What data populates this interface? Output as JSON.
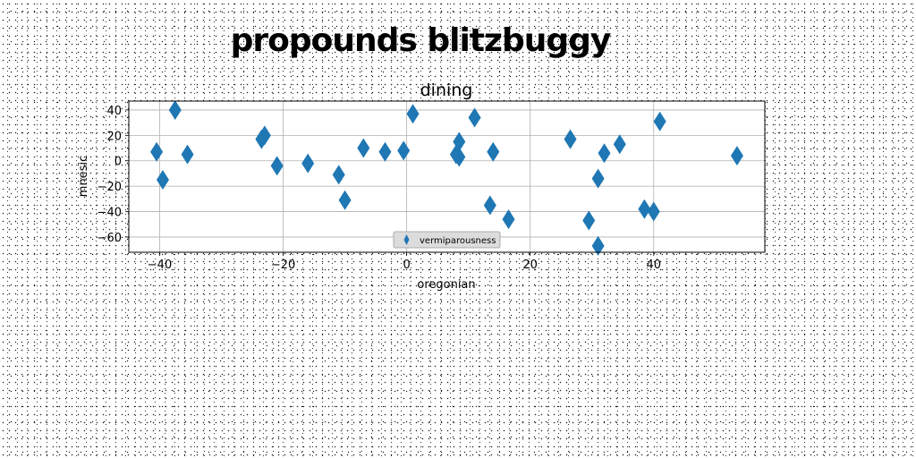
{
  "figure": {
    "suptitle": "propounds blitzbuggy"
  },
  "chart_data": {
    "type": "scatter",
    "title": "dining",
    "xlabel": "oregonian",
    "ylabel": "mnesic",
    "xlim": [
      -45,
      58
    ],
    "ylim": [
      -72,
      47
    ],
    "xticks": [
      -40,
      -20,
      0,
      20,
      40
    ],
    "yticks": [
      -60,
      -40,
      -20,
      0,
      20,
      40
    ],
    "xtick_labels": [
      "−40",
      "−20",
      "0",
      "20",
      "40"
    ],
    "ytick_labels": [
      "−60",
      "−40",
      "−20",
      "0",
      "20",
      "40"
    ],
    "grid": true,
    "legend_position": "lower center",
    "marker": "thin-diamond",
    "color": "#1f77b4",
    "series": [
      {
        "name": "vermiparousness",
        "x": [
          -40.5,
          -39.5,
          -37.5,
          -35.5,
          -23.5,
          -23,
          -21,
          -16,
          -11,
          -10,
          -7,
          -3.5,
          -0.5,
          1,
          8,
          8.5,
          8.5,
          11,
          13.5,
          14,
          16.5,
          26.5,
          29.5,
          31,
          31,
          32,
          34.5,
          38.5,
          40,
          41,
          53.5
        ],
        "y": [
          7,
          -15,
          40,
          5,
          17,
          20,
          -4,
          -2,
          -11,
          -31,
          10,
          7,
          8,
          37,
          5,
          15,
          3,
          34,
          -35,
          7,
          -46,
          17,
          -47,
          -14,
          -67,
          6,
          13,
          -38,
          -40,
          31,
          4
        ]
      }
    ]
  }
}
